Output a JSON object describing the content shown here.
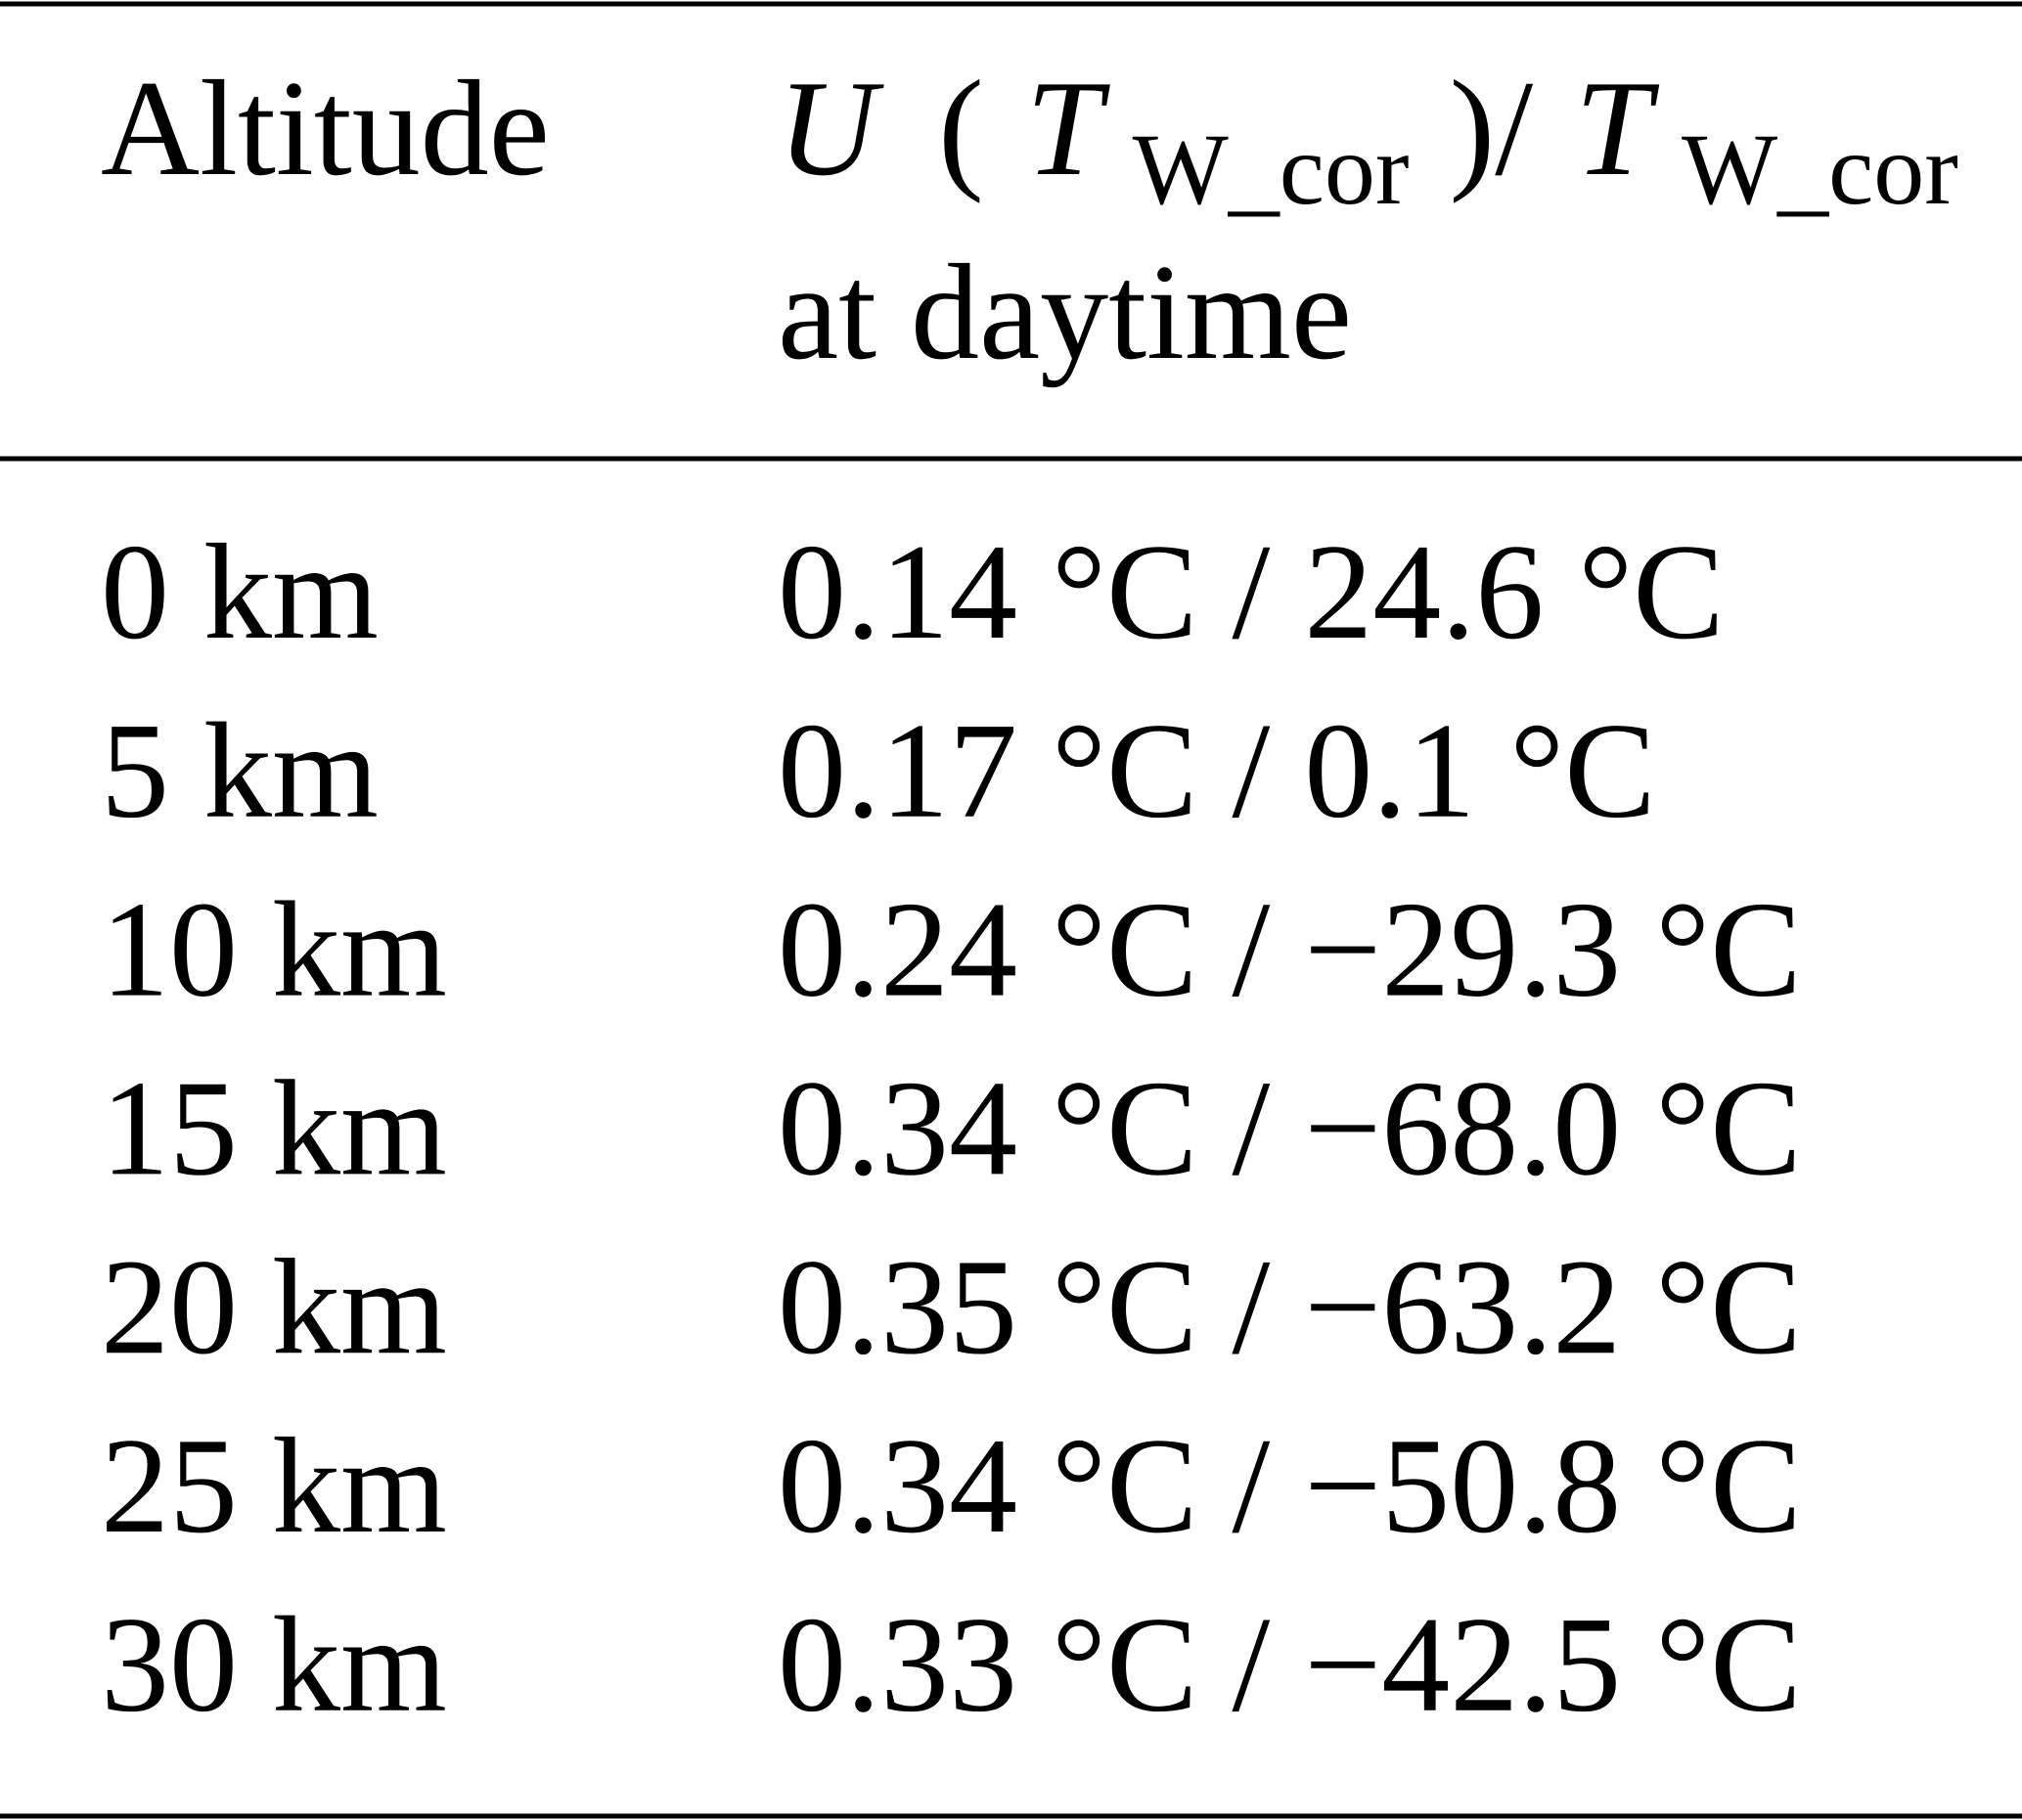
{
  "header": [
    "Altitude",
    [
      "U",
      "(",
      "T",
      "W_cor",
      ")/",
      "T",
      "W_cor",
      "at daytime"
    ]
  ],
  "rows": [
    [
      "0 km",
      "0.14 °C / 24.6 °C"
    ],
    [
      "5 km",
      "0.17 °C / 0.1 °C"
    ],
    [
      "10 km",
      "0.24 °C / −29.3 °C"
    ],
    [
      "15 km",
      "0.34 °C / −68.0 °C"
    ],
    [
      "20 km",
      "0.35 °C / −63.2 °C"
    ],
    [
      "25 km",
      "0.34 °C / −50.8 °C"
    ],
    [
      "30 km",
      "0.33 °C / −42.5 °C"
    ]
  ]
}
